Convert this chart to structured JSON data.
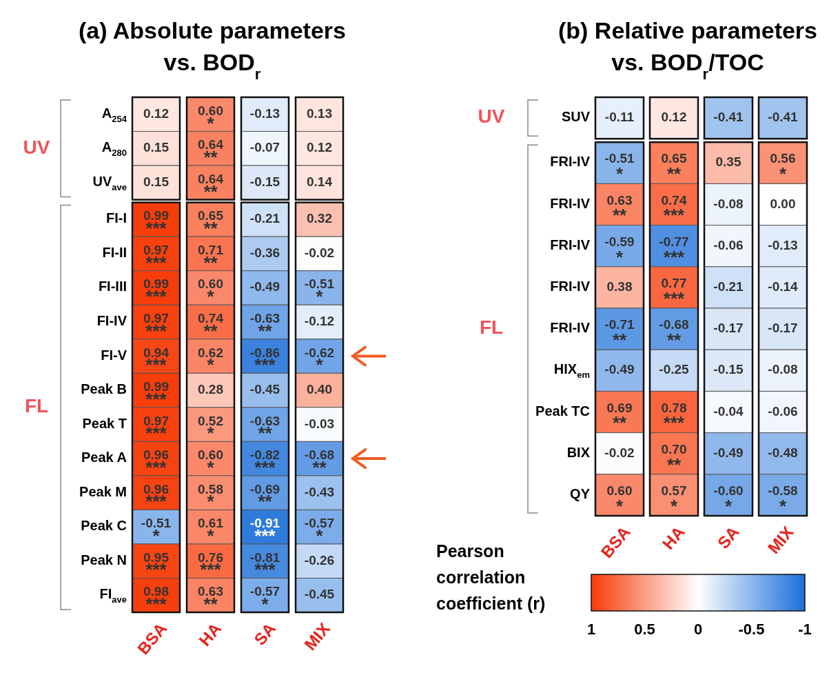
{
  "chart_data": [
    {
      "type": "heatmap",
      "title": "(a) Absolute parameters\nvs. BOD$_{r}$",
      "categories": [
        "BSA",
        "HA",
        "SA",
        "MIX"
      ],
      "y_categories": [
        "A$_{254}$",
        "A$_{280}$",
        "UV$_{ave}$",
        "FI-I",
        "FI-II",
        "FI-III",
        "FI-IV",
        "FI-V",
        "Peak B",
        "Peak T",
        "Peak A",
        "Peak M",
        "Peak C",
        "Peak N",
        "FI$_{ave}$"
      ],
      "cells": [
        [
          0.12,
          0.6,
          -0.13,
          0.13
        ],
        [
          0.15,
          0.64,
          -0.07,
          0.12
        ],
        [
          0.15,
          0.64,
          -0.15,
          0.14
        ],
        [
          0.99,
          0.65,
          -0.21,
          0.32
        ],
        [
          0.97,
          0.71,
          -0.36,
          -0.02
        ],
        [
          0.99,
          0.6,
          -0.49,
          -0.51
        ],
        [
          0.97,
          0.74,
          -0.63,
          -0.12
        ],
        [
          0.94,
          0.62,
          -0.86,
          -0.62
        ],
        [
          0.99,
          0.28,
          -0.45,
          0.4
        ],
        [
          0.97,
          0.52,
          -0.63,
          -0.03
        ],
        [
          0.96,
          0.6,
          -0.82,
          -0.68
        ],
        [
          0.96,
          0.58,
          -0.69,
          -0.43
        ],
        [
          -0.51,
          0.61,
          -0.91,
          -0.57
        ],
        [
          0.95,
          0.76,
          -0.81,
          -0.26
        ],
        [
          0.98,
          0.63,
          -0.57,
          -0.45
        ]
      ],
      "cell_labels": [
        [
          "0.12",
          "0.60\n*",
          "-0.13",
          "0.13"
        ],
        [
          "0.15",
          "0.64\n**",
          "-0.07",
          "0.12"
        ],
        [
          "0.15",
          "0.64\n**",
          "-0.15",
          "0.14"
        ],
        [
          "0.99\n***",
          "0.65\n**",
          "-0.21",
          "0.32"
        ],
        [
          "0.97\n***",
          "0.71\n**",
          "-0.36",
          "-0.02"
        ],
        [
          "0.99\n***",
          "0.60\n*",
          "-0.49",
          "-0.51\n*"
        ],
        [
          "0.97\n***",
          "0.74\n**",
          "-0.63\n**",
          "-0.12"
        ],
        [
          "0.94\n***",
          "0.62\n*",
          "-0.86\n***",
          "-0.62\n*"
        ],
        [
          "0.99\n***",
          "0.28",
          "-0.45",
          "0.40"
        ],
        [
          "0.97\n***",
          "0.52\n*",
          "-0.63\n**",
          "-0.03"
        ],
        [
          "0.96\n***",
          "0.60\n*",
          "-0.82\n***",
          "-0.68\n**"
        ],
        [
          "0.96\n***",
          "0.58\n*",
          "-0.69\n**",
          "-0.43"
        ],
        [
          "-0.51\n*",
          "0.61\n*",
          "-0.91\n***",
          "-0.57\n*"
        ],
        [
          "0.95\n***",
          "0.76\n***",
          "-0.81\n***",
          "-0.26"
        ],
        [
          "0.98\n***",
          "0.63\n**",
          "-0.57\n*",
          "-0.45"
        ]
      ],
      "annotations": [
        "UV",
        "FL"
      ]
    },
    {
      "type": "heatmap",
      "title": "(b) Relative parameters\nvs. BOD$_{r}$/TOC",
      "categories": [
        "BSA",
        "HA",
        "SA",
        "MIX"
      ],
      "y_categories": [
        "SUV",
        "FRI-IV",
        "FRI-IV",
        "FRI-IV",
        "FRI-IV",
        "FRI-IV",
        "HIX$_{em}$",
        "Peak TC",
        "BIX",
        "QY"
      ],
      "cells": [
        [
          -0.11,
          0.12,
          -0.41,
          -0.41
        ],
        [
          -0.51,
          0.65,
          0.35,
          0.56
        ],
        [
          0.63,
          0.74,
          -0.08,
          0.0
        ],
        [
          -0.59,
          -0.77,
          -0.06,
          -0.13
        ],
        [
          0.38,
          0.77,
          -0.21,
          -0.14
        ],
        [
          -0.71,
          -0.68,
          -0.17,
          -0.17
        ],
        [
          -0.49,
          -0.25,
          -0.15,
          -0.08
        ],
        [
          0.69,
          0.78,
          -0.04,
          -0.06
        ],
        [
          -0.02,
          0.7,
          -0.49,
          -0.48
        ],
        [
          0.6,
          0.57,
          -0.6,
          -0.58
        ]
      ],
      "cell_labels": [
        [
          "-0.11",
          "0.12",
          "-0.41",
          "-0.41"
        ],
        [
          "-0.51\n*",
          "0.65\n**",
          "0.35",
          "0.56\n*"
        ],
        [
          "0.63\n**",
          "0.74\n***",
          "-0.08",
          "0.00"
        ],
        [
          "-0.59\n*",
          "-0.77\n***",
          "-0.06",
          "-0.13"
        ],
        [
          "0.38",
          "0.77\n***",
          "-0.21",
          "-0.14"
        ],
        [
          "-0.71\n**",
          "-0.68\n**",
          "-0.17",
          "-0.17"
        ],
        [
          "-0.49",
          "-0.25",
          "-0.15",
          "-0.08"
        ],
        [
          "0.69\n**",
          "0.78\n***",
          "-0.04",
          "-0.06"
        ],
        [
          "-0.02",
          "0.70\n**",
          "-0.49",
          "-0.48"
        ],
        [
          "0.60\n*",
          "0.57\n*",
          "-0.60\n*",
          "-0.58\n*"
        ]
      ],
      "annotations": [
        "UV",
        "FL"
      ],
      "clabel": "Pearson correlation coefficient (r)",
      "clim": [
        1,
        -1
      ],
      "cticks": [
        1,
        0.5,
        0,
        -0.5,
        -1
      ]
    }
  ]
}
